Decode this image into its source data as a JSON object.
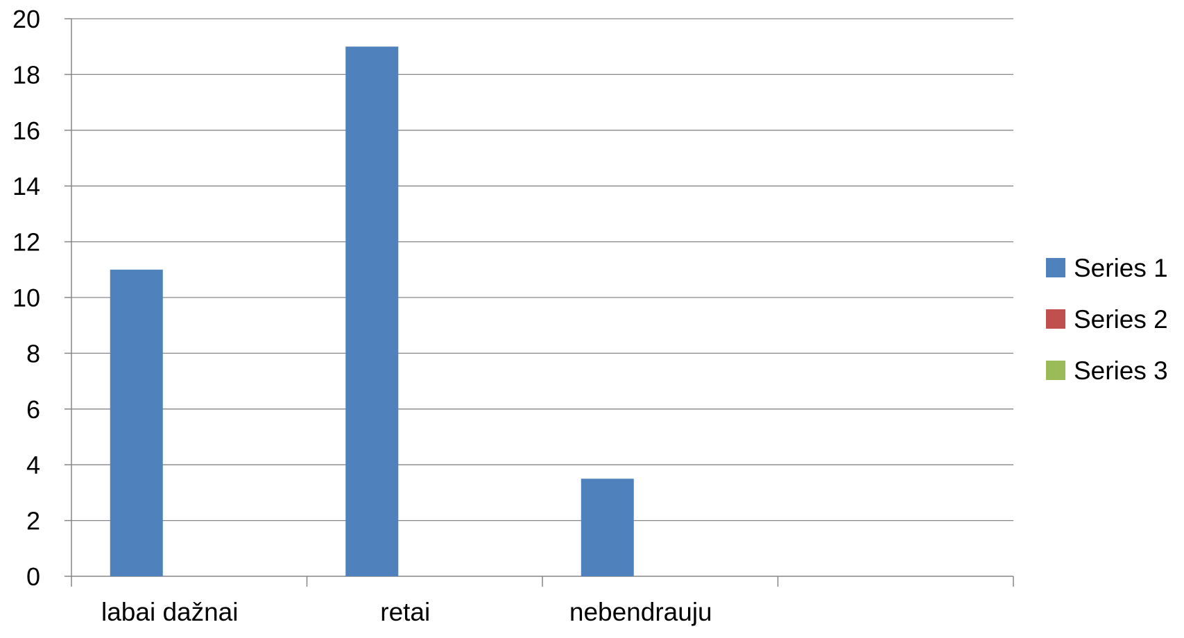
{
  "chart_data": {
    "type": "bar",
    "categories": [
      "labai dažnai",
      "retai",
      "nebendrauju",
      ""
    ],
    "series": [
      {
        "name": "Series 1",
        "values": [
          11,
          19,
          3.5,
          null
        ]
      },
      {
        "name": "Series 2",
        "values": [
          null,
          null,
          null,
          null
        ]
      },
      {
        "name": "Series 3",
        "values": [
          null,
          null,
          null,
          null
        ]
      }
    ],
    "colors": [
      "#4F81BD",
      "#C0504D",
      "#9BBB59"
    ],
    "ylim": [
      0,
      20
    ],
    "ytick_step": 2,
    "yticks": [
      "0",
      "2",
      "4",
      "6",
      "8",
      "10",
      "12",
      "14",
      "16",
      "18",
      "20"
    ],
    "grid": true,
    "legend": "right",
    "title": "",
    "xlabel": "",
    "ylabel": ""
  }
}
